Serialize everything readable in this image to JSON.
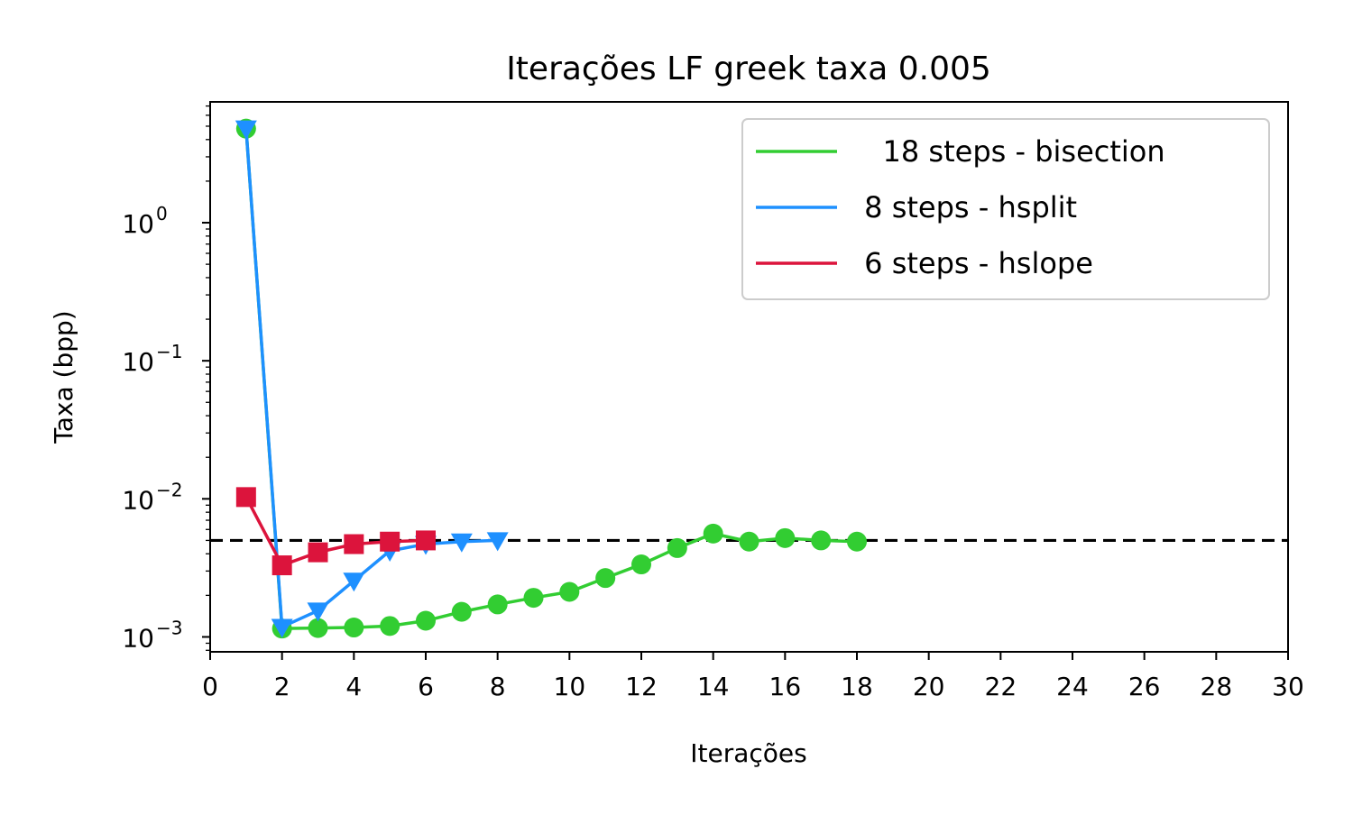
{
  "chart_data": {
    "type": "line",
    "title": "Iterações LF greek taxa 0.005",
    "xlabel": "Iterações",
    "ylabel": "Taxa (bpp)",
    "xlim": [
      0,
      30
    ],
    "ylim": [
      0.00078,
      7.5
    ],
    "yscale": "log",
    "x_ticks": [
      0,
      2,
      4,
      6,
      8,
      10,
      12,
      14,
      16,
      18,
      20,
      22,
      24,
      26,
      28,
      30
    ],
    "y_ticks": [
      {
        "value": 0.001,
        "base": "10",
        "exp": "−3"
      },
      {
        "value": 0.01,
        "base": "10",
        "exp": "−2"
      },
      {
        "value": 0.1,
        "base": "10",
        "exp": "−1"
      },
      {
        "value": 1,
        "base": "10",
        "exp": "0"
      }
    ],
    "reference_line": {
      "y": 0.005,
      "style": "dashed",
      "color": "#000000"
    },
    "legend_position": "top-right",
    "series": [
      {
        "name": "   18 steps - bisection",
        "color": "#32cd32",
        "marker": "circle",
        "x": [
          1,
          2,
          3,
          4,
          5,
          6,
          7,
          8,
          9,
          10,
          11,
          12,
          13,
          14,
          15,
          16,
          17,
          18
        ],
        "y": [
          4.8,
          0.00115,
          0.00116,
          0.00117,
          0.0012,
          0.00131,
          0.00152,
          0.00172,
          0.00192,
          0.00212,
          0.00267,
          0.00335,
          0.0044,
          0.0056,
          0.0049,
          0.0052,
          0.005,
          0.0049
        ]
      },
      {
        "name": " 8 steps - hsplit",
        "color": "#1e90ff",
        "marker": "triangle-down",
        "x": [
          1,
          2,
          3,
          4,
          5,
          6,
          7,
          8
        ],
        "y": [
          4.8,
          0.00118,
          0.00155,
          0.00255,
          0.0042,
          0.0047,
          0.0049,
          0.005
        ]
      },
      {
        "name": " 6 steps - hslope",
        "color": "#dc143c",
        "marker": "square",
        "x": [
          1,
          2,
          3,
          4,
          5,
          6
        ],
        "y": [
          0.0103,
          0.0033,
          0.0041,
          0.0047,
          0.0049,
          0.005
        ]
      }
    ]
  }
}
